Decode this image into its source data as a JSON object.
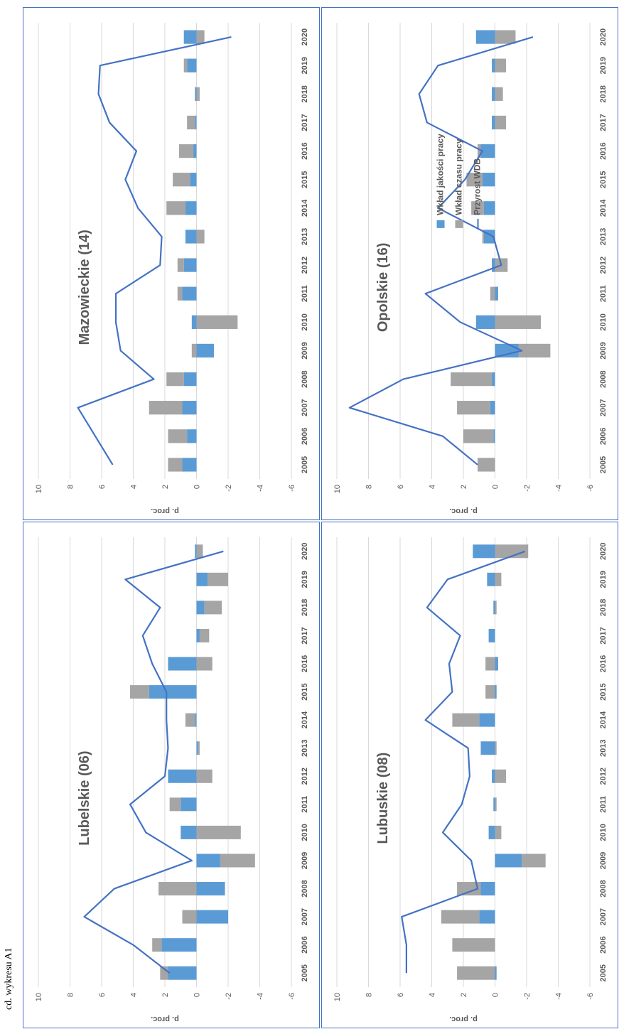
{
  "caption": "cd. wykresu A1",
  "chart_data": [
    {
      "type": "bar",
      "title": "Lubelskie (06)",
      "ylabel": "p. proc.",
      "ylim": [
        -6,
        10
      ],
      "yticks": [
        10,
        8,
        6,
        4,
        2,
        0,
        -2,
        -4,
        -6
      ],
      "categories": [
        "2005",
        "2006",
        "2007",
        "2008",
        "2009",
        "2010",
        "2011",
        "2012",
        "2013",
        "2014",
        "2015",
        "2016",
        "2017",
        "2018",
        "2019",
        "2020"
      ],
      "series": [
        {
          "name": "Wkład jakości pracy",
          "kind": "bar",
          "color": "#5b9bd5",
          "values": [
            1.8,
            2.2,
            -2.0,
            -1.8,
            -1.5,
            1.0,
            1.0,
            1.8,
            -0.1,
            0.1,
            3.0,
            1.8,
            -0.2,
            -0.5,
            -0.7,
            0.1
          ]
        },
        {
          "name": "Wkład czasu pracy",
          "kind": "bar",
          "color": "#a5a5a5",
          "values": [
            0.5,
            0.6,
            0.9,
            2.4,
            -2.2,
            -2.8,
            0.7,
            -1.0,
            -0.1,
            0.6,
            1.2,
            -1.0,
            -0.6,
            -1.1,
            -1.3,
            -0.4
          ]
        },
        {
          "name": "Przyrost WDB",
          "kind": "line",
          "color": "#4472c4",
          "values": [
            1.7,
            4.0,
            7.1,
            5.2,
            0.3,
            3.2,
            4.2,
            2.0,
            1.8,
            1.9,
            1.9,
            2.8,
            3.4,
            2.3,
            4.5,
            -1.7
          ]
        }
      ]
    },
    {
      "type": "bar",
      "title": "Mazowieckie (14)",
      "ylabel": "p. proc.",
      "ylim": [
        -6,
        10
      ],
      "yticks": [
        10,
        8,
        6,
        4,
        2,
        0,
        -2,
        -4,
        -6
      ],
      "categories": [
        "2005",
        "2006",
        "2007",
        "2008",
        "2009",
        "2010",
        "2011",
        "2012",
        "2013",
        "2014",
        "2015",
        "2016",
        "2017",
        "2018",
        "2019",
        "2020"
      ],
      "series": [
        {
          "name": "Wkład jakości pracy",
          "kind": "bar",
          "color": "#5b9bd5",
          "values": [
            0.9,
            0.6,
            0.9,
            0.8,
            -1.1,
            0.3,
            0.9,
            0.8,
            0.7,
            0.7,
            0.4,
            0.2,
            0.1,
            0.1,
            0.6,
            0.8
          ]
        },
        {
          "name": "Wkład czasu pracy",
          "kind": "bar",
          "color": "#a5a5a5",
          "values": [
            0.9,
            1.2,
            2.1,
            1.1,
            0.3,
            -2.6,
            0.3,
            0.4,
            -0.5,
            1.2,
            1.1,
            0.9,
            0.5,
            -0.2,
            0.2,
            -0.5
          ]
        },
        {
          "name": "Przyrost WDB",
          "kind": "line",
          "color": "#4472c4",
          "values": [
            5.3,
            6.4,
            7.5,
            2.7,
            4.8,
            5.1,
            5.1,
            2.3,
            2.2,
            3.7,
            4.5,
            3.8,
            5.5,
            6.2,
            6.1,
            -2.2
          ]
        }
      ]
    },
    {
      "type": "bar",
      "title": "Lubuskie (08)",
      "ylabel": "p. proc.",
      "ylim": [
        -6,
        10
      ],
      "yticks": [
        10,
        8,
        6,
        4,
        2,
        0,
        -2,
        -4,
        -6
      ],
      "categories": [
        "2005",
        "2006",
        "2007",
        "2008",
        "2009",
        "2010",
        "2011",
        "2012",
        "2013",
        "2014",
        "2015",
        "2016",
        "2017",
        "2018",
        "2019",
        "2020"
      ],
      "series": [
        {
          "name": "Wkład jakości pracy",
          "kind": "bar",
          "color": "#5b9bd5",
          "values": [
            -0.1,
            0.0,
            1.0,
            0.9,
            -1.7,
            0.4,
            0.1,
            0.2,
            0.9,
            1.0,
            -0.1,
            -0.2,
            0.4,
            0.1,
            0.5,
            1.4
          ]
        },
        {
          "name": "Wkład czasu pracy",
          "kind": "bar",
          "color": "#a5a5a5",
          "values": [
            2.4,
            2.7,
            2.4,
            1.5,
            -1.5,
            -0.4,
            -0.1,
            -0.7,
            -0.1,
            1.7,
            0.6,
            0.6,
            0.0,
            -0.1,
            -0.4,
            -2.1
          ]
        },
        {
          "name": "Przyrost WDB",
          "kind": "line",
          "color": "#4472c4",
          "values": [
            5.6,
            5.6,
            5.9,
            1.1,
            1.5,
            3.3,
            2.1,
            1.6,
            1.7,
            4.4,
            2.7,
            2.9,
            2.2,
            4.3,
            3.0,
            -1.9
          ]
        }
      ]
    },
    {
      "type": "bar",
      "title": "Opolskie (16)",
      "ylabel": "p. proc.",
      "ylim": [
        -6,
        10
      ],
      "yticks": [
        10,
        8,
        6,
        4,
        2,
        0,
        -2,
        -4,
        -6
      ],
      "legend": {
        "position": "bottom-right",
        "entries": [
          "Wkład jakości pracy",
          "Wkład czasu pracy",
          "Przyrost WDB"
        ]
      },
      "categories": [
        "2005",
        "2006",
        "2007",
        "2008",
        "2009",
        "2010",
        "2011",
        "2012",
        "2013",
        "2014",
        "2015",
        "2016",
        "2017",
        "2018",
        "2019",
        "2020"
      ],
      "series": [
        {
          "name": "Wkład jakości pracy",
          "kind": "bar",
          "color": "#5b9bd5",
          "values": [
            0.0,
            0.1,
            0.3,
            0.2,
            -1.5,
            1.2,
            -0.2,
            0.2,
            0.7,
            0.7,
            0.8,
            0.9,
            0.2,
            0.2,
            0.2,
            1.2
          ]
        },
        {
          "name": "Wkład czasu pracy",
          "kind": "bar",
          "color": "#a5a5a5",
          "values": [
            1.1,
            1.9,
            2.1,
            2.6,
            -2.0,
            -2.9,
            0.3,
            -0.8,
            0.1,
            0.8,
            1.0,
            0.2,
            -0.7,
            -0.5,
            -0.7,
            -1.3
          ]
        },
        {
          "name": "Przyrost WDB",
          "kind": "line",
          "color": "#4472c4",
          "values": [
            1.1,
            3.3,
            9.2,
            5.8,
            -1.7,
            2.2,
            4.4,
            -0.4,
            0.1,
            3.6,
            1.9,
            0.8,
            4.3,
            4.8,
            3.6,
            -2.4
          ]
        }
      ]
    }
  ]
}
